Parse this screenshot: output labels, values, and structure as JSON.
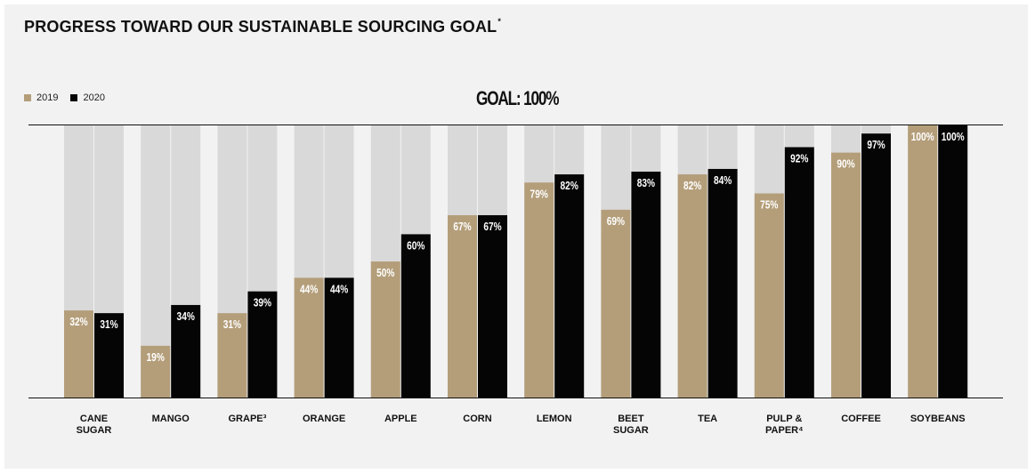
{
  "title": "PROGRESS TOWARD OUR SUSTAINABLE SOURCING GOAL",
  "title_mark": "*",
  "goal_label": "GOAL: 100%",
  "colors": {
    "s2019": "#b49e7a",
    "s2020": "#050505",
    "track": "#d9d9d9",
    "background": "#f2f2f2"
  },
  "chart_data": {
    "type": "bar",
    "categories": [
      [
        "CANE",
        "SUGAR"
      ],
      [
        "MANGO"
      ],
      [
        "GRAPE³"
      ],
      [
        "ORANGE"
      ],
      [
        "APPLE"
      ],
      [
        "CORN"
      ],
      [
        "LEMON"
      ],
      [
        "BEET",
        "SUGAR"
      ],
      [
        "TEA"
      ],
      [
        "PULP &",
        "PAPER⁴"
      ],
      [
        "COFFEE"
      ],
      [
        "SOYBEANS"
      ]
    ],
    "series": [
      {
        "name": "2019",
        "values": [
          32,
          19,
          31,
          44,
          50,
          67,
          79,
          69,
          82,
          75,
          90,
          100
        ],
        "labels": [
          "32%",
          "19%",
          "31%",
          "44%",
          "50%",
          "67%",
          "79%",
          "69%",
          "82%",
          "75%",
          "90%",
          "100%"
        ]
      },
      {
        "name": "2020",
        "values": [
          31,
          34,
          39,
          44,
          60,
          67,
          82,
          83,
          84,
          92,
          97,
          100
        ],
        "labels": [
          "31%",
          "34%",
          "39%",
          "44%",
          "60%",
          "67%",
          "82%",
          "83%",
          "84%",
          "92%",
          "97%",
          "100%"
        ]
      }
    ],
    "ylim": [
      0,
      100
    ],
    "legend": "top-left"
  }
}
